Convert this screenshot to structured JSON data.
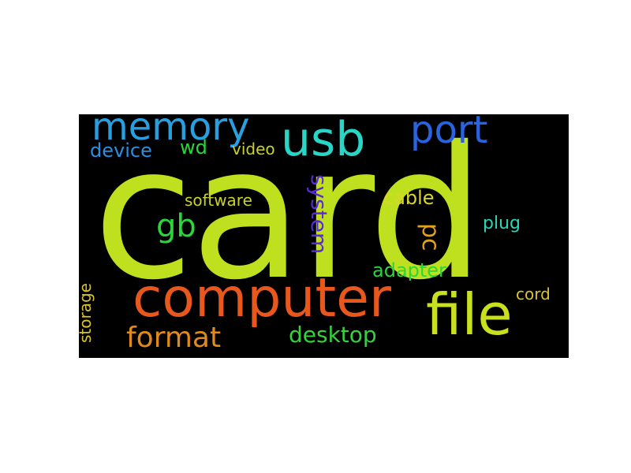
{
  "word_cloud": {
    "background_color": "#000000",
    "words": {
      "card": {
        "text": "card",
        "color": "#bfe01e"
      },
      "computer": {
        "text": "computer",
        "color": "#e8581c"
      },
      "file": {
        "text": "file",
        "color": "#c9e01f"
      },
      "usb": {
        "text": "usb",
        "color": "#27d6c6"
      },
      "memory": {
        "text": "memory",
        "color": "#2a9fe0"
      },
      "port": {
        "text": "port",
        "color": "#2a63e0"
      },
      "format": {
        "text": "format",
        "color": "#e08a1e"
      },
      "desktop": {
        "text": "desktop",
        "color": "#35d23c"
      },
      "adapter": {
        "text": "adapter",
        "color": "#2bd63b"
      },
      "cable": {
        "text": "cable",
        "color": "#d9d629"
      },
      "device": {
        "text": "device",
        "color": "#2a8fe0"
      },
      "gb": {
        "text": "gb",
        "color": "#2bd63b"
      },
      "wd": {
        "text": "wd",
        "color": "#2bd63b"
      },
      "video": {
        "text": "video",
        "color": "#c8d22a"
      },
      "software": {
        "text": "software",
        "color": "#c8d22a"
      },
      "plug": {
        "text": "plug",
        "color": "#2ad6b6"
      },
      "cord": {
        "text": "cord",
        "color": "#d9c42a"
      },
      "pc": {
        "text": "pc",
        "color": "#e0a21e"
      },
      "system": {
        "text": "system",
        "color": "#5a2bd6"
      },
      "storage": {
        "text": "storage",
        "color": "#d9c42a"
      }
    }
  }
}
